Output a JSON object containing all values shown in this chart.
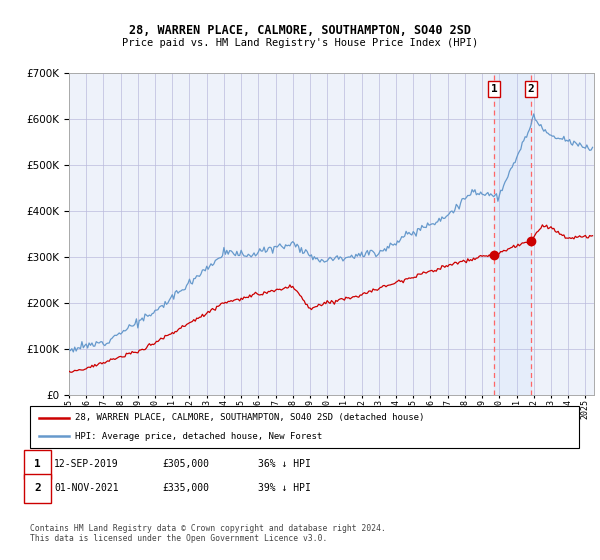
{
  "title": "28, WARREN PLACE, CALMORE, SOUTHAMPTON, SO40 2SD",
  "subtitle": "Price paid vs. HM Land Registry's House Price Index (HPI)",
  "legend_line1": "28, WARREN PLACE, CALMORE, SOUTHAMPTON, SO40 2SD (detached house)",
  "legend_line2": "HPI: Average price, detached house, New Forest",
  "annotation1": [
    "1",
    "12-SEP-2019",
    "£305,000",
    "36% ↓ HPI"
  ],
  "annotation2": [
    "2",
    "01-NOV-2021",
    "£335,000",
    "39% ↓ HPI"
  ],
  "footer": "Contains HM Land Registry data © Crown copyright and database right 2024.\nThis data is licensed under the Open Government Licence v3.0.",
  "event1_year": 2019.71,
  "event2_year": 2021.83,
  "event1_price": 305000,
  "event2_price": 335000,
  "red_color": "#cc0000",
  "blue_color": "#6699cc",
  "bg_color": "#eef2fa",
  "grid_color": "#bbbbdd",
  "ylim": [
    0,
    700000
  ],
  "xlim": [
    1995,
    2025.5
  ]
}
